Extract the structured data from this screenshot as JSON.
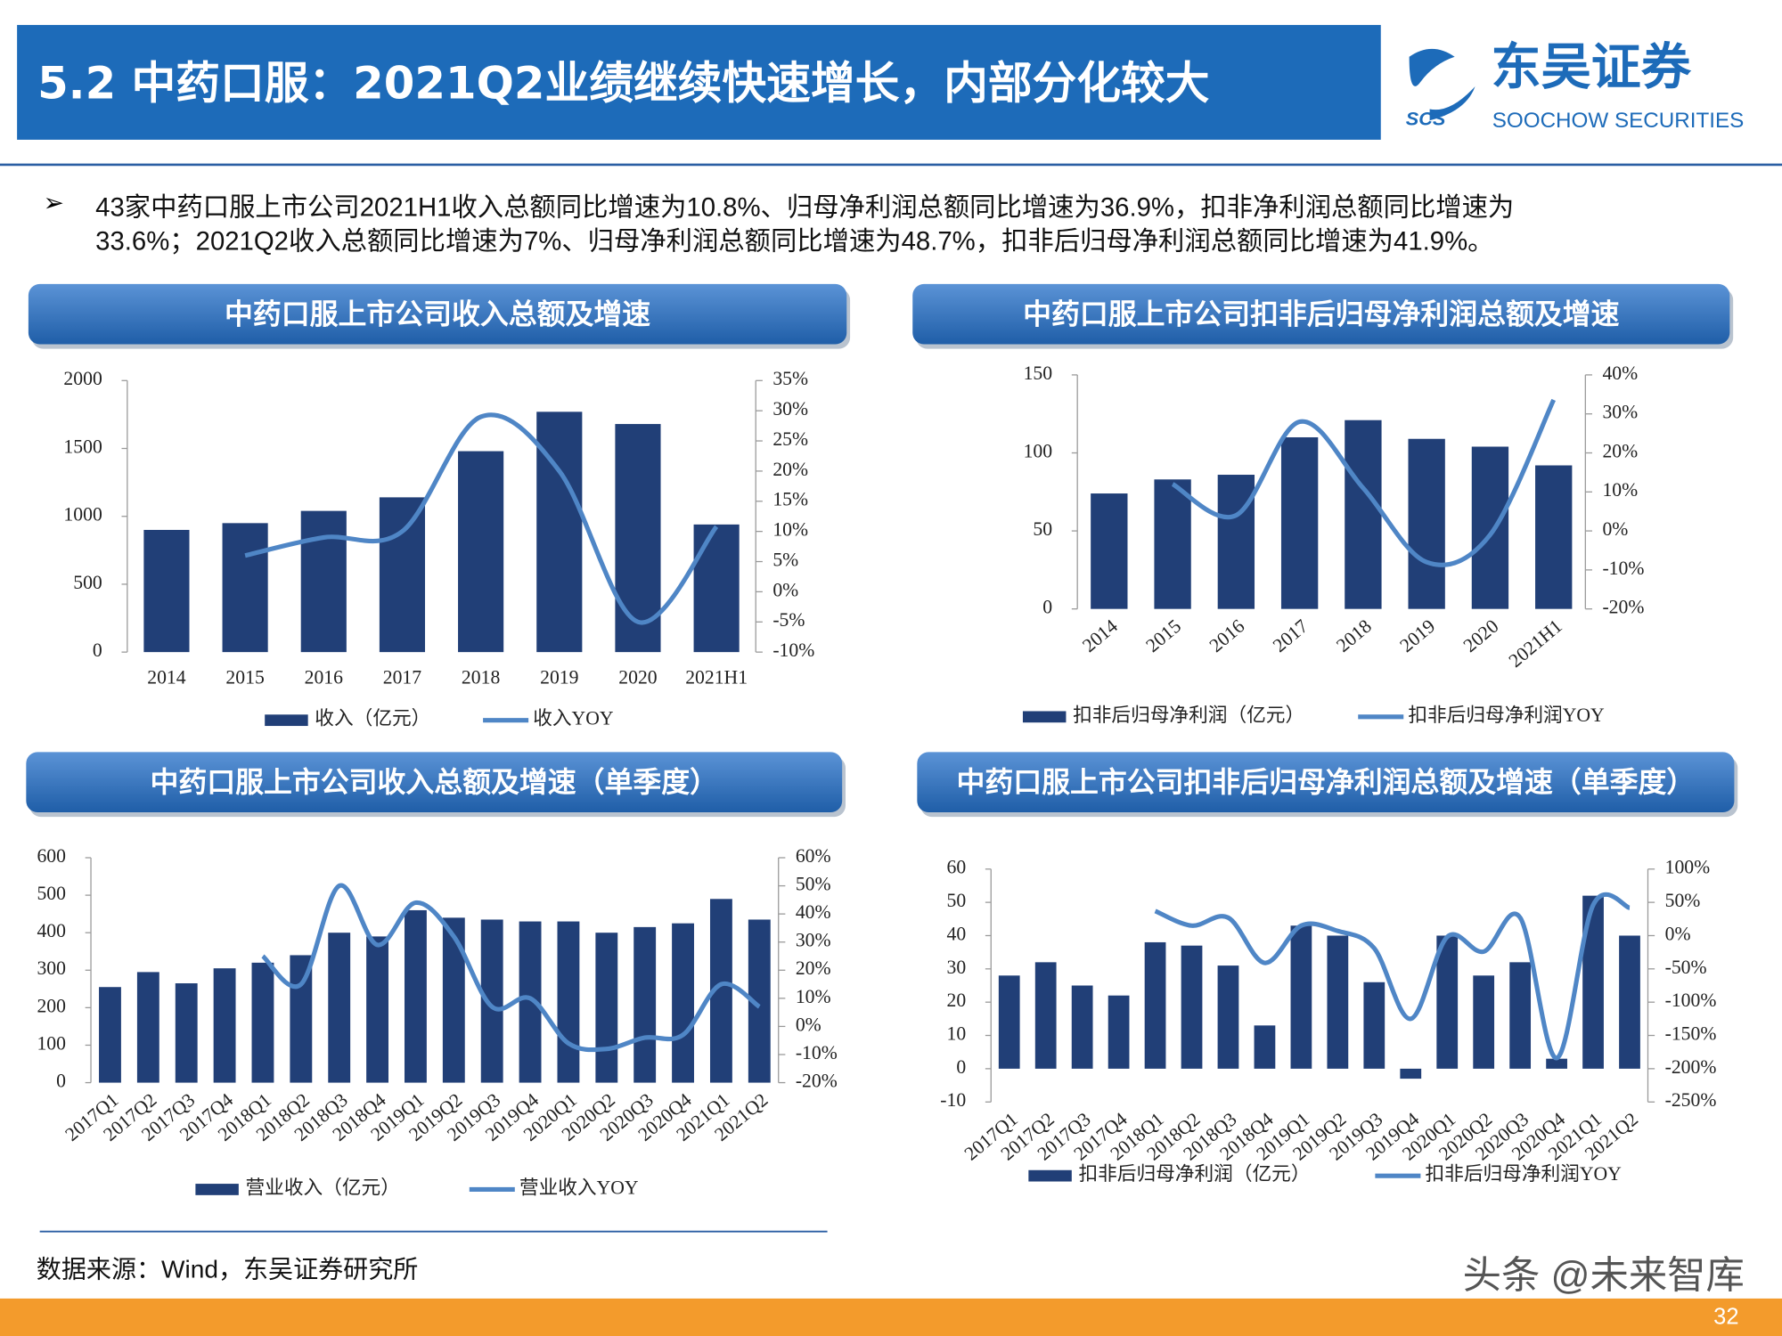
{
  "header": {
    "title": "5.2 中药口服：2021Q2业绩继续快速增长，内部分化较大",
    "logo_cn": "东吴证券",
    "logo_en": "SOOCHOW SECURITIES",
    "logo_abbr": "SCS"
  },
  "bullet": {
    "lines": [
      "43家中药口服上市公司2021H1收入总额同比增速为10.8%、归母净利润总额同比增速为36.9%，扣非净利润总额同比增速为",
      "33.6%；2021Q2收入总额同比增速为7%、归母净利润总额同比增速为48.7%，扣非后归母净利润总额同比增速为41.9%。"
    ]
  },
  "chart_data": [
    {
      "type": "combo",
      "title": "中药口服上市公司收入总额及增速",
      "categories": [
        "2014",
        "2015",
        "2016",
        "2017",
        "2018",
        "2019",
        "2020",
        "2021H1"
      ],
      "series": [
        {
          "name": "收入（亿元）",
          "type": "bar",
          "color": "#213f77",
          "values": [
            900,
            950,
            1040,
            1140,
            1480,
            1770,
            1680,
            940
          ]
        },
        {
          "name": "收入YOY",
          "type": "line",
          "axis": "y2",
          "color": "#4f86c6",
          "values": [
            null,
            6,
            9,
            10,
            29,
            20,
            -5,
            10.8
          ]
        }
      ],
      "ylim": [
        0,
        2000
      ],
      "yticks": [
        0,
        500,
        1000,
        1500,
        2000
      ],
      "y2lim": [
        -10,
        35
      ],
      "y2ticks": [
        {
          "value": -10,
          "label": "-10%"
        },
        {
          "value": -5,
          "label": "-5%"
        },
        {
          "value": 0,
          "label": "0%"
        },
        {
          "value": 5,
          "label": "5%"
        },
        {
          "value": 10,
          "label": "10%"
        },
        {
          "value": 15,
          "label": "15%"
        },
        {
          "value": 20,
          "label": "20%"
        },
        {
          "value": 25,
          "label": "25%"
        },
        {
          "value": 30,
          "label": "30%"
        },
        {
          "value": 35,
          "label": "35%"
        }
      ]
    },
    {
      "type": "combo",
      "title": "中药口服上市公司扣非后归母净利润总额及增速",
      "categories": [
        "2014",
        "2015",
        "2016",
        "2017",
        "2018",
        "2019",
        "2020",
        "2021H1"
      ],
      "series": [
        {
          "name": "扣非后归母净利润（亿元）",
          "type": "bar",
          "color": "#213f77",
          "values": [
            74,
            83,
            86,
            110,
            121,
            109,
            104,
            92
          ]
        },
        {
          "name": "扣非后归母净利润YOY",
          "type": "line",
          "axis": "y2",
          "color": "#4f86c6",
          "values": [
            null,
            12,
            4,
            28,
            11,
            -8,
            -1,
            33.6
          ]
        }
      ],
      "ylim": [
        0,
        150
      ],
      "yticks": [
        0,
        50,
        100,
        150
      ],
      "y2lim": [
        -20,
        40
      ],
      "y2ticks": [
        {
          "value": -20,
          "label": "-20%"
        },
        {
          "value": -10,
          "label": "-10%"
        },
        {
          "value": 0,
          "label": "0%"
        },
        {
          "value": 10,
          "label": "10%"
        },
        {
          "value": 20,
          "label": "20%"
        },
        {
          "value": 30,
          "label": "30%"
        },
        {
          "value": 40,
          "label": "40%"
        }
      ]
    },
    {
      "type": "combo",
      "title": "中药口服上市公司收入总额及增速（单季度）",
      "categories": [
        "2017Q1",
        "2017Q2",
        "2017Q3",
        "2017Q4",
        "2018Q1",
        "2018Q2",
        "2018Q3",
        "2018Q4",
        "2019Q1",
        "2019Q2",
        "2019Q3",
        "2019Q4",
        "2020Q1",
        "2020Q2",
        "2020Q3",
        "2020Q4",
        "2021Q1",
        "2021Q2"
      ],
      "series": [
        {
          "name": "营业收入（亿元）",
          "type": "bar",
          "color": "#213f77",
          "values": [
            255,
            295,
            265,
            305,
            320,
            340,
            400,
            390,
            460,
            440,
            435,
            430,
            430,
            400,
            415,
            425,
            490,
            435
          ]
        },
        {
          "name": "营业收入YOY",
          "type": "line",
          "axis": "y2",
          "color": "#4f86c6",
          "values": [
            null,
            null,
            null,
            null,
            25,
            15,
            50,
            29,
            44,
            32,
            7,
            10,
            -6,
            -8,
            -4,
            -3,
            15,
            7
          ]
        }
      ],
      "ylim": [
        0,
        600
      ],
      "yticks": [
        0,
        100,
        200,
        300,
        400,
        500,
        600
      ],
      "y2lim": [
        -20,
        60
      ],
      "y2ticks": [
        {
          "value": -20,
          "label": "-20%"
        },
        {
          "value": -10,
          "label": "-10%"
        },
        {
          "value": 0,
          "label": "0%"
        },
        {
          "value": 10,
          "label": "10%"
        },
        {
          "value": 20,
          "label": "20%"
        },
        {
          "value": 30,
          "label": "30%"
        },
        {
          "value": 40,
          "label": "40%"
        },
        {
          "value": 50,
          "label": "50%"
        },
        {
          "value": 60,
          "label": "60%"
        }
      ]
    },
    {
      "type": "combo",
      "title": "中药口服上市公司扣非后归母净利润总额及增速（单季度）",
      "categories": [
        "2017Q1",
        "2017Q2",
        "2017Q3",
        "2017Q4",
        "2018Q1",
        "2018Q2",
        "2018Q3",
        "2018Q4",
        "2019Q1",
        "2019Q2",
        "2019Q3",
        "2019Q4",
        "2020Q1",
        "2020Q2",
        "2020Q3",
        "2020Q4",
        "2021Q1",
        "2021Q2"
      ],
      "series": [
        {
          "name": "扣非后归母净利润（亿元）",
          "type": "bar",
          "color": "#213f77",
          "values": [
            28,
            32,
            25,
            22,
            38,
            37,
            31,
            13,
            43,
            40,
            26,
            -3,
            40,
            28,
            32,
            3,
            52,
            40
          ]
        },
        {
          "name": "扣非后归母净利润YOY",
          "type": "line",
          "axis": "y2",
          "color": "#4f86c6",
          "values": [
            null,
            null,
            null,
            null,
            37,
            15,
            27,
            -41,
            15,
            7,
            -19,
            -125,
            -2,
            -24,
            27,
            -184,
            46,
            41.9
          ]
        }
      ],
      "ylim": [
        -10,
        60
      ],
      "yticks": [
        -10,
        0,
        10,
        20,
        30,
        40,
        50,
        60
      ],
      "y2lim": [
        -250,
        100
      ],
      "y2ticks": [
        {
          "value": -250,
          "label": "-250%"
        },
        {
          "value": -200,
          "label": "-200%"
        },
        {
          "value": -150,
          "label": "-150%"
        },
        {
          "value": -100,
          "label": "-100%"
        },
        {
          "value": -50,
          "label": "-50%"
        },
        {
          "value": 0,
          "label": "0%"
        },
        {
          "value": 50,
          "label": "50%"
        },
        {
          "value": 100,
          "label": "100%"
        }
      ]
    }
  ],
  "footer": {
    "source": "数据来源：Wind，东吴证券研究所",
    "watermark": "头条 @未来智库",
    "page": "32"
  }
}
